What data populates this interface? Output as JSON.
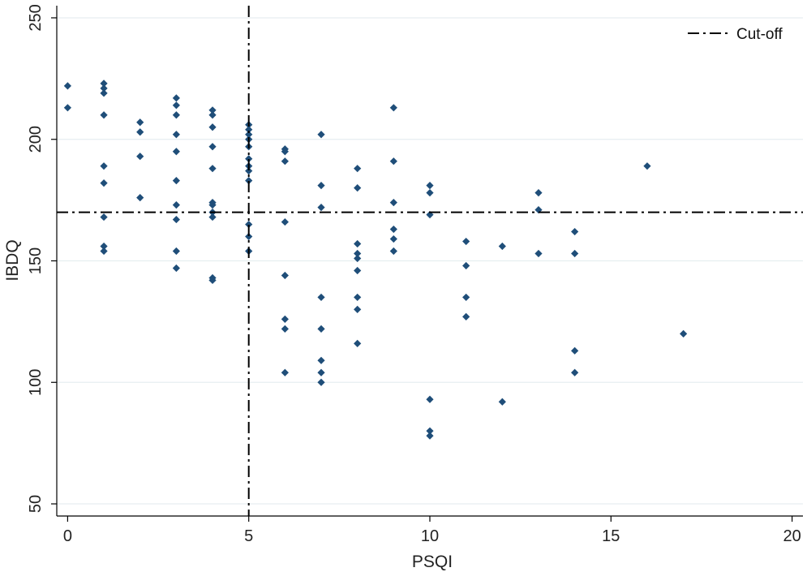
{
  "chart_data": {
    "type": "scatter",
    "title": "",
    "xlabel": "PSQI",
    "ylabel": "IBDQ",
    "xlim": [
      -0.3,
      20.3
    ],
    "ylim": [
      45,
      255
    ],
    "xticks": [
      0,
      5,
      10,
      15,
      20
    ],
    "yticks": [
      50,
      100,
      150,
      200,
      250
    ],
    "grid": "horizontal",
    "legend": {
      "position": "top-right",
      "entries": [
        {
          "label": "Cut-off",
          "style": "dash-dot"
        }
      ]
    },
    "cutoff": {
      "x": 5,
      "y": 170
    },
    "colors": {
      "marker": "#1f4e79",
      "line": "#000000",
      "grid": "#e6eef0"
    },
    "series": [
      {
        "marker": "diamond",
        "points": [
          [
            0,
            222
          ],
          [
            0,
            213
          ],
          [
            1,
            223
          ],
          [
            1,
            221
          ],
          [
            1,
            219
          ],
          [
            1,
            210
          ],
          [
            1,
            189
          ],
          [
            1,
            182
          ],
          [
            1,
            168
          ],
          [
            1,
            156
          ],
          [
            1,
            154
          ],
          [
            2,
            207
          ],
          [
            2,
            203
          ],
          [
            2,
            193
          ],
          [
            2,
            176
          ],
          [
            3,
            217
          ],
          [
            3,
            214
          ],
          [
            3,
            210
          ],
          [
            3,
            202
          ],
          [
            3,
            195
          ],
          [
            3,
            183
          ],
          [
            3,
            173
          ],
          [
            3,
            167
          ],
          [
            3,
            154
          ],
          [
            3,
            147
          ],
          [
            4,
            212
          ],
          [
            4,
            210
          ],
          [
            4,
            205
          ],
          [
            4,
            197
          ],
          [
            4,
            188
          ],
          [
            4,
            174
          ],
          [
            4,
            173
          ],
          [
            4,
            170
          ],
          [
            4,
            168
          ],
          [
            4,
            143
          ],
          [
            4,
            142
          ],
          [
            5,
            206
          ],
          [
            5,
            204
          ],
          [
            5,
            202
          ],
          [
            5,
            200
          ],
          [
            5,
            197
          ],
          [
            5,
            192
          ],
          [
            5,
            189
          ],
          [
            5,
            187
          ],
          [
            5,
            183
          ],
          [
            5,
            165
          ],
          [
            5,
            160
          ],
          [
            5,
            154
          ],
          [
            6,
            196
          ],
          [
            6,
            195
          ],
          [
            6,
            191
          ],
          [
            6,
            166
          ],
          [
            6,
            144
          ],
          [
            6,
            126
          ],
          [
            6,
            122
          ],
          [
            6,
            104
          ],
          [
            7,
            202
          ],
          [
            7,
            181
          ],
          [
            7,
            172
          ],
          [
            7,
            135
          ],
          [
            7,
            122
          ],
          [
            7,
            109
          ],
          [
            7,
            104
          ],
          [
            7,
            100
          ],
          [
            8,
            188
          ],
          [
            8,
            180
          ],
          [
            8,
            157
          ],
          [
            8,
            153
          ],
          [
            8,
            151
          ],
          [
            8,
            146
          ],
          [
            8,
            135
          ],
          [
            8,
            130
          ],
          [
            8,
            116
          ],
          [
            9,
            213
          ],
          [
            9,
            191
          ],
          [
            9,
            174
          ],
          [
            9,
            163
          ],
          [
            9,
            159
          ],
          [
            9,
            154
          ],
          [
            10,
            181
          ],
          [
            10,
            178
          ],
          [
            10,
            169
          ],
          [
            10,
            93
          ],
          [
            10,
            80
          ],
          [
            10,
            78
          ],
          [
            11,
            158
          ],
          [
            11,
            148
          ],
          [
            11,
            135
          ],
          [
            11,
            127
          ],
          [
            12,
            156
          ],
          [
            12,
            92
          ],
          [
            13,
            178
          ],
          [
            13,
            171
          ],
          [
            13,
            153
          ],
          [
            14,
            162
          ],
          [
            14,
            153
          ],
          [
            14,
            113
          ],
          [
            14,
            104
          ],
          [
            16,
            189
          ],
          [
            17,
            120
          ]
        ]
      }
    ]
  }
}
